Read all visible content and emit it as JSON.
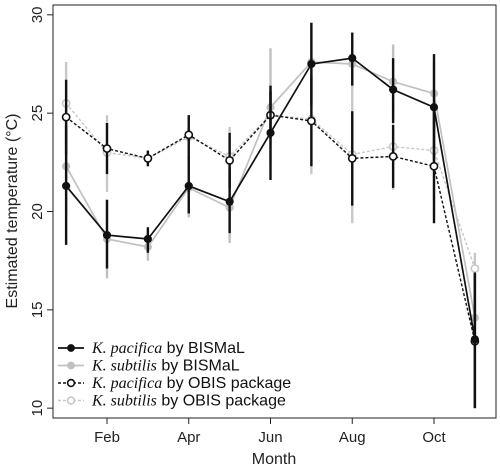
{
  "chart_data": {
    "type": "line",
    "xlabel": "Month",
    "ylabel": "Estimated temperature (°C)",
    "ylim": [
      9.5,
      30.5
    ],
    "yticks": [
      10,
      15,
      20,
      25,
      30
    ],
    "xticks": [
      {
        "month": 2,
        "label": "Feb"
      },
      {
        "month": 4,
        "label": "Apr"
      },
      {
        "month": 6,
        "label": "Jun"
      },
      {
        "month": 8,
        "label": "Aug"
      },
      {
        "month": 10,
        "label": "Oct"
      }
    ],
    "grid": false,
    "legend_position": "bottom-left",
    "series": [
      {
        "species": "K. pacifica",
        "suffix": " by BISMaL",
        "color": "#111111",
        "style": "solid",
        "marker": "filled",
        "points": [
          {
            "x": 1,
            "y": 21.3,
            "lo": 18.3,
            "hi": 24.4
          },
          {
            "x": 2,
            "y": 18.8,
            "lo": 17.1,
            "hi": 20.6
          },
          {
            "x": 3,
            "y": 18.6,
            "lo": 17.9,
            "hi": 19.2
          },
          {
            "x": 4,
            "y": 21.3,
            "lo": 19.9,
            "hi": 22.8
          },
          {
            "x": 5,
            "y": 20.5,
            "lo": 18.9,
            "hi": 22.2
          },
          {
            "x": 6,
            "y": 24.0,
            "lo": 21.6,
            "hi": 26.4
          },
          {
            "x": 7,
            "y": 27.5,
            "lo": 25.4,
            "hi": 29.6
          },
          {
            "x": 8,
            "y": 27.8,
            "lo": 26.4,
            "hi": 29.1
          },
          {
            "x": 9,
            "y": 26.2,
            "lo": 24.5,
            "hi": 27.8
          },
          {
            "x": 10,
            "y": 25.3,
            "lo": 22.6,
            "hi": 28.0
          },
          {
            "x": 11,
            "y": 13.5,
            "lo": 10.0,
            "hi": 16.9
          }
        ]
      },
      {
        "species": "K. subtilis",
        "suffix": " by BISMaL",
        "color": "#c0c0c0",
        "style": "solid",
        "marker": "filled",
        "points": [
          {
            "x": 1,
            "y": 22.3,
            "lo": 19.9,
            "hi": 24.6
          },
          {
            "x": 2,
            "y": 18.6,
            "lo": 16.6,
            "hi": 20.6
          },
          {
            "x": 3,
            "y": 18.2,
            "lo": 17.5,
            "hi": 18.9
          },
          {
            "x": 4,
            "y": 21.2,
            "lo": 19.7,
            "hi": 22.8
          },
          {
            "x": 5,
            "y": 20.2,
            "lo": 18.4,
            "hi": 22.0
          },
          {
            "x": 6,
            "y": 25.3,
            "lo": 22.4,
            "hi": 28.3
          },
          {
            "x": 7,
            "y": 27.6,
            "lo": 25.6,
            "hi": 29.6
          },
          {
            "x": 8,
            "y": 27.5,
            "lo": 26.4,
            "hi": 28.6
          },
          {
            "x": 9,
            "y": 26.6,
            "lo": 24.8,
            "hi": 28.5
          },
          {
            "x": 10,
            "y": 26.0,
            "lo": 24.4,
            "hi": 27.6
          },
          {
            "x": 11,
            "y": 14.6,
            "lo": 12.8,
            "hi": 16.4
          }
        ]
      },
      {
        "species": "K. pacifica",
        "suffix": " by OBIS package",
        "color": "#111111",
        "style": "dashed",
        "marker": "open",
        "points": [
          {
            "x": 1,
            "y": 24.8,
            "lo": 22.9,
            "hi": 26.7
          },
          {
            "x": 2,
            "y": 23.2,
            "lo": 21.9,
            "hi": 24.5
          },
          {
            "x": 3,
            "y": 22.7,
            "lo": 22.3,
            "hi": 23.1
          },
          {
            "x": 4,
            "y": 23.9,
            "lo": 22.7,
            "hi": 24.9
          },
          {
            "x": 5,
            "y": 22.6,
            "lo": 21.2,
            "hi": 24.0
          },
          {
            "x": 6,
            "y": 24.9,
            "lo": 23.7,
            "hi": 26.1
          },
          {
            "x": 7,
            "y": 24.6,
            "lo": 22.3,
            "hi": 26.9
          },
          {
            "x": 8,
            "y": 22.7,
            "lo": 20.3,
            "hi": 25.1
          },
          {
            "x": 9,
            "y": 22.8,
            "lo": 21.2,
            "hi": 24.4
          },
          {
            "x": 10,
            "y": 22.3,
            "lo": 19.4,
            "hi": 25.1
          },
          {
            "x": 11,
            "y": 13.4,
            "lo": 10.0,
            "hi": 16.8
          }
        ]
      },
      {
        "species": "K. subtilis",
        "suffix": " by OBIS package",
        "color": "#c8c8c8",
        "style": "dashed",
        "marker": "open",
        "points": [
          {
            "x": 1,
            "y": 25.5,
            "lo": 23.4,
            "hi": 27.6
          },
          {
            "x": 2,
            "y": 23.0,
            "lo": 21.0,
            "hi": 24.9
          },
          {
            "x": 3,
            "y": 22.7,
            "lo": 22.3,
            "hi": 23.1
          },
          {
            "x": 4,
            "y": 23.8,
            "lo": 22.7,
            "hi": 24.9
          },
          {
            "x": 5,
            "y": 22.8,
            "lo": 21.4,
            "hi": 24.3
          },
          {
            "x": 6,
            "y": 24.9,
            "lo": 23.4,
            "hi": 26.4
          },
          {
            "x": 7,
            "y": 24.7,
            "lo": 21.9,
            "hi": 27.4
          },
          {
            "x": 8,
            "y": 22.9,
            "lo": 19.4,
            "hi": 26.5
          },
          {
            "x": 9,
            "y": 23.3,
            "lo": 21.1,
            "hi": 25.5
          },
          {
            "x": 10,
            "y": 23.1,
            "lo": 20.5,
            "hi": 25.6
          },
          {
            "x": 11,
            "y": 17.1,
            "lo": 16.2,
            "hi": 17.9
          }
        ]
      }
    ]
  }
}
